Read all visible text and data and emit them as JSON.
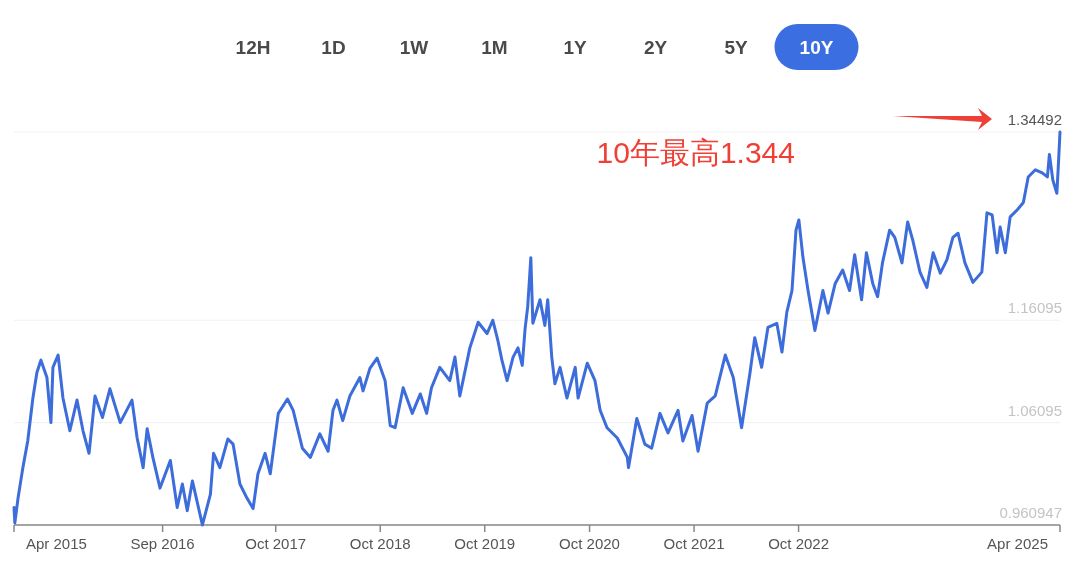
{
  "chart_data": {
    "type": "line",
    "x": [
      "2015-04-01",
      "2015-04-04",
      "2015-04-15",
      "2015-05-02",
      "2015-05-19",
      "2015-06-06",
      "2015-06-20",
      "2015-07-04",
      "2015-07-25",
      "2015-08-08",
      "2015-08-15",
      "2015-09-02",
      "2015-09-19",
      "2015-10-13",
      "2015-11-07",
      "2015-11-28",
      "2015-12-19",
      "2016-01-09",
      "2016-02-04",
      "2016-03-01",
      "2016-04-06",
      "2016-05-17",
      "2016-06-04",
      "2016-06-25",
      "2016-07-09",
      "2016-07-29",
      "2016-08-23",
      "2016-09-28",
      "2016-10-22",
      "2016-11-09",
      "2016-11-26",
      "2016-12-14",
      "2017-01-18",
      "2017-02-15",
      "2017-02-26",
      "2017-03-20",
      "2017-04-17",
      "2017-05-05",
      "2017-05-29",
      "2017-06-23",
      "2017-07-14",
      "2017-07-31",
      "2017-08-25",
      "2017-09-12",
      "2017-10-10",
      "2017-11-11",
      "2017-12-01",
      "2018-01-02",
      "2018-01-30",
      "2018-03-04",
      "2018-04-02",
      "2018-04-19",
      "2018-05-03",
      "2018-05-23",
      "2018-06-17",
      "2018-07-22",
      "2018-08-02",
      "2018-08-26",
      "2018-09-20",
      "2018-10-18",
      "2018-11-05",
      "2018-11-22",
      "2018-12-20",
      "2019-01-21",
      "2019-02-18",
      "2019-03-12",
      "2019-03-29",
      "2019-04-27",
      "2019-06-01",
      "2019-06-19",
      "2019-07-06",
      "2019-08-10",
      "2019-09-08",
      "2019-10-09",
      "2019-10-29",
      "2019-11-16",
      "2019-11-30",
      "2019-12-18",
      "2020-01-08",
      "2020-01-25",
      "2020-02-09",
      "2020-02-19",
      "2020-02-28",
      "2020-03-10",
      "2020-03-17",
      "2020-04-11",
      "2020-04-28",
      "2020-05-08",
      "2020-05-22",
      "2020-06-02",
      "2020-06-20",
      "2020-07-14",
      "2020-08-12",
      "2020-08-22",
      "2020-09-23",
      "2020-10-20",
      "2020-11-07",
      "2020-12-01",
      "2021-01-06",
      "2021-02-10",
      "2021-02-14",
      "2021-03-15",
      "2021-04-12",
      "2021-05-06",
      "2021-06-04",
      "2021-07-02",
      "2021-08-06",
      "2021-08-23",
      "2021-09-24",
      "2021-10-15",
      "2021-11-16",
      "2021-12-14",
      "2022-01-18",
      "2022-02-15",
      "2022-03-16",
      "2022-04-14",
      "2022-05-01",
      "2022-05-25",
      "2022-06-16",
      "2022-07-17",
      "2022-08-04",
      "2022-08-21",
      "2022-09-08",
      "2022-09-22",
      "2022-10-02",
      "2022-10-16",
      "2022-11-03",
      "2022-11-27",
      "2022-12-25",
      "2023-01-12",
      "2023-02-06",
      "2023-03-04",
      "2023-03-28",
      "2023-04-15",
      "2023-05-09",
      "2023-05-26",
      "2023-06-17",
      "2023-07-04",
      "2023-07-21",
      "2023-08-15",
      "2023-09-02",
      "2023-09-27",
      "2023-10-17",
      "2023-11-04",
      "2023-11-29",
      "2023-12-23",
      "2024-01-14",
      "2024-02-08",
      "2024-03-02",
      "2024-03-23",
      "2024-04-10",
      "2024-05-04",
      "2024-06-01",
      "2024-07-02",
      "2024-07-20",
      "2024-08-07",
      "2024-08-24",
      "2024-09-04",
      "2024-09-22",
      "2024-10-09",
      "2024-11-03",
      "2024-11-24",
      "2024-12-11",
      "2025-01-05",
      "2025-01-29",
      "2025-02-16",
      "2025-02-23",
      "2025-03-07",
      "2025-03-21",
      "2025-03-26",
      "2025-04-01"
    ],
    "values": [
      0.978,
      0.963,
      0.987,
      1.017,
      1.043,
      1.085,
      1.11,
      1.122,
      1.105,
      1.061,
      1.115,
      1.127,
      1.085,
      1.053,
      1.083,
      1.053,
      1.031,
      1.087,
      1.066,
      1.094,
      1.061,
      1.083,
      1.046,
      1.017,
      1.055,
      1.027,
      0.997,
      1.024,
      0.978,
      1.001,
      0.975,
      1.004,
      0.961,
      0.991,
      1.031,
      1.017,
      1.045,
      1.04,
      1.001,
      0.987,
      0.977,
      1.011,
      1.031,
      1.011,
      1.07,
      1.084,
      1.073,
      1.036,
      1.027,
      1.05,
      1.033,
      1.073,
      1.083,
      1.063,
      1.087,
      1.105,
      1.092,
      1.114,
      1.124,
      1.102,
      1.058,
      1.056,
      1.095,
      1.07,
      1.089,
      1.07,
      1.095,
      1.115,
      1.102,
      1.125,
      1.087,
      1.134,
      1.159,
      1.148,
      1.161,
      1.141,
      1.122,
      1.102,
      1.125,
      1.134,
      1.117,
      1.153,
      1.174,
      1.222,
      1.158,
      1.181,
      1.156,
      1.181,
      1.125,
      1.099,
      1.115,
      1.085,
      1.115,
      1.085,
      1.119,
      1.102,
      1.073,
      1.056,
      1.046,
      1.027,
      1.017,
      1.065,
      1.04,
      1.036,
      1.07,
      1.051,
      1.073,
      1.043,
      1.068,
      1.033,
      1.08,
      1.087,
      1.127,
      1.105,
      1.056,
      1.109,
      1.144,
      1.115,
      1.154,
      1.158,
      1.13,
      1.169,
      1.19,
      1.249,
      1.259,
      1.223,
      1.19,
      1.151,
      1.19,
      1.168,
      1.197,
      1.21,
      1.19,
      1.225,
      1.181,
      1.227,
      1.197,
      1.184,
      1.217,
      1.249,
      1.242,
      1.217,
      1.257,
      1.239,
      1.208,
      1.193,
      1.227,
      1.207,
      1.22,
      1.242,
      1.246,
      1.217,
      1.198,
      1.208,
      1.266,
      1.264,
      1.227,
      1.252,
      1.227,
      1.262,
      1.269,
      1.276,
      1.301,
      1.308,
      1.305,
      1.301,
      1.323,
      1.298,
      1.285,
      1.311,
      1.34492
    ],
    "color": "#3d6cdb",
    "line_style": "solid",
    "marker": "none",
    "grid": "y",
    "xlim": [
      "2015-04-01",
      "2025-04-01"
    ],
    "xticks": [
      {
        "value": "2015-04-01",
        "label": "Apr 2015"
      },
      {
        "value": "2016-09-01",
        "label": "Sep 2016"
      },
      {
        "value": "2017-10-01",
        "label": "Oct 2017"
      },
      {
        "value": "2018-10-01",
        "label": "Oct 2018"
      },
      {
        "value": "2019-10-01",
        "label": "Oct 2019"
      },
      {
        "value": "2020-10-01",
        "label": "Oct 2020"
      },
      {
        "value": "2021-10-01",
        "label": "Oct 2021"
      },
      {
        "value": "2022-10-01",
        "label": "Oct 2022"
      },
      {
        "value": "2025-04-01",
        "label": "Apr 2025"
      }
    ],
    "ylim": [
      0.960947,
      1.34492
    ],
    "yticks": [
      0.960947,
      1.06095,
      1.16095,
      1.34492
    ],
    "annotations": [
      "12H",
      "1D",
      "1W",
      "1M",
      "1Y",
      "2Y",
      "5Y",
      "10Y",
      "10年最高1.344"
    ]
  }
}
